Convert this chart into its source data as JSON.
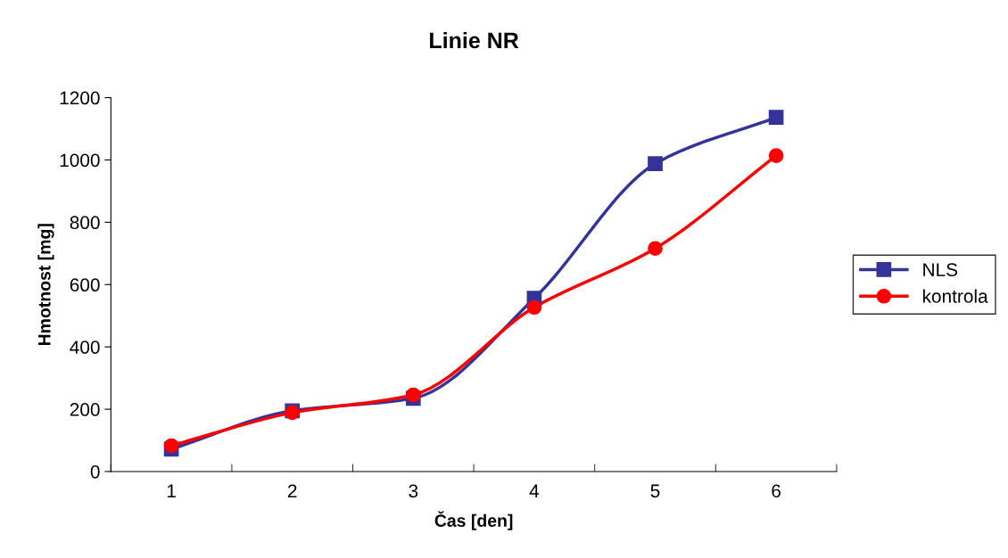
{
  "chart_data": {
    "type": "line",
    "title": "Linie NR",
    "xlabel": "Čas [den]",
    "ylabel": "Hmotnost [mg]",
    "categories": [
      "1",
      "2",
      "3",
      "4",
      "5",
      "6"
    ],
    "series": [
      {
        "name": "NLS",
        "color": "#333399",
        "marker": "square",
        "values": [
          72,
          195,
          235,
          556,
          988,
          1137
        ]
      },
      {
        "name": "kontrola",
        "color": "#ff0000",
        "marker": "circle",
        "values": [
          83,
          189,
          246,
          527,
          716,
          1014
        ]
      }
    ],
    "ylim": [
      0,
      1200
    ],
    "yticks": [
      0,
      200,
      400,
      600,
      800,
      1000,
      1200
    ],
    "grid": false,
    "legend": "right",
    "line_style": "solid"
  }
}
